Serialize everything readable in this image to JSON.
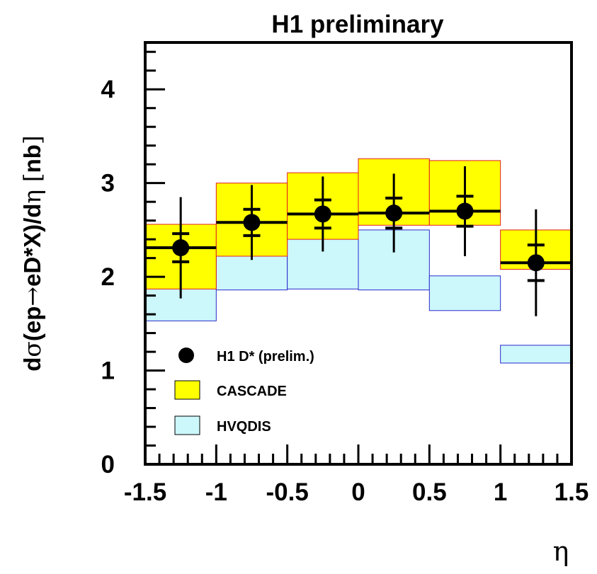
{
  "chart_data": {
    "type": "bar",
    "title": "H1 preliminary",
    "xlabel": "η",
    "ylabel_parts": [
      "d",
      "σ",
      "(ep",
      "→",
      "eD*X)/d",
      "η",
      " [",
      "nb",
      "]"
    ],
    "xlim": [
      -1.5,
      1.5
    ],
    "ylim": [
      0,
      4.5
    ],
    "x_ticks": [
      -1.5,
      -1,
      -0.5,
      0,
      0.5,
      1,
      1.5
    ],
    "x_tick_labels": [
      "-1.5",
      "-1",
      "-0.5",
      "0",
      "0.5",
      "1",
      "1.5"
    ],
    "y_ticks": [
      0,
      1,
      2,
      3,
      4
    ],
    "y_tick_labels": [
      "0",
      "1",
      "2",
      "3",
      "4"
    ],
    "bins": [
      [
        -1.5,
        -1.0
      ],
      [
        -1.0,
        -0.5
      ],
      [
        -0.5,
        0.0
      ],
      [
        0.0,
        0.5
      ],
      [
        0.5,
        1.0
      ],
      [
        1.0,
        1.5
      ]
    ],
    "series": [
      {
        "name": "HVQDIS",
        "kind": "band",
        "fill": "#ccf7fb",
        "stroke": "#2a2acc",
        "low": [
          1.53,
          1.86,
          1.87,
          1.86,
          1.64,
          1.08
        ],
        "high": [
          2.22,
          2.23,
          2.62,
          2.5,
          2.01,
          1.27
        ]
      },
      {
        "name": "CASCADE",
        "kind": "band",
        "fill": "#ffff00",
        "stroke": "#e02020",
        "low": [
          1.87,
          2.22,
          2.4,
          2.55,
          2.55,
          2.08
        ],
        "high": [
          2.56,
          3.0,
          3.11,
          3.26,
          3.24,
          2.5
        ]
      },
      {
        "name": "H1 D* (prelim.)",
        "kind": "points",
        "color": "#000000",
        "x": [
          -1.25,
          -0.75,
          -0.25,
          0.25,
          0.75,
          1.25
        ],
        "y": [
          2.31,
          2.58,
          2.67,
          2.68,
          2.7,
          2.15
        ],
        "stat_err": [
          0.15,
          0.14,
          0.15,
          0.16,
          0.16,
          0.19
        ],
        "tot_err": [
          0.54,
          0.4,
          0.4,
          0.42,
          0.48,
          0.57
        ]
      }
    ],
    "legend_position": "bottom-left"
  }
}
